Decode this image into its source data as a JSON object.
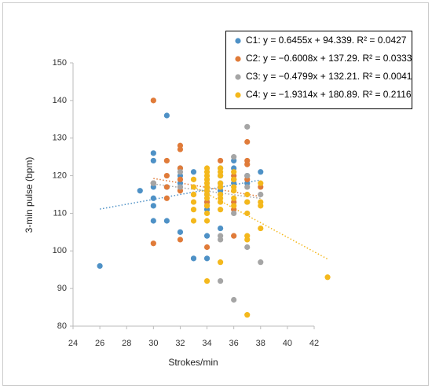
{
  "chart_data": {
    "type": "scatter",
    "x_label": "Strokes/min",
    "y_label": "3-min pulse (bpm)",
    "xlim": [
      24,
      42
    ],
    "xticks": [
      24,
      26,
      28,
      30,
      32,
      34,
      36,
      38,
      40,
      42
    ],
    "ylim": [
      80,
      150
    ],
    "yticks": [
      80,
      90,
      100,
      110,
      120,
      130,
      140,
      150
    ],
    "grid": false,
    "legend": "top-right",
    "series": [
      {
        "name": "C1: y = 0.6455x + 94.339. R² = 0.0427",
        "color": "#4e91c6",
        "x": [
          26,
          29,
          30,
          30,
          30,
          30,
          30,
          30,
          30,
          31,
          31,
          31,
          32,
          32,
          32,
          32,
          32,
          33,
          33,
          34,
          34,
          34,
          34,
          34,
          35,
          35,
          35,
          35,
          35,
          36,
          36,
          36,
          37,
          37,
          38
        ],
        "values": [
          96,
          116,
          126,
          124,
          118,
          117,
          114,
          112,
          108,
          136,
          108,
          117,
          122,
          120,
          118,
          117,
          105,
          121,
          98,
          115,
          113,
          111,
          104,
          98,
          122,
          120,
          118,
          116,
          106,
          124,
          122,
          118,
          120,
          118,
          121
        ],
        "trend": {
          "slope": 0.6455,
          "intercept": 94.339,
          "xrange": [
            26,
            38
          ]
        }
      },
      {
        "name": "C2: y = −0.6008x + 137.29. R² = 0.0333",
        "color": "#e07b39",
        "x": [
          30,
          30,
          30,
          31,
          31,
          31,
          31,
          32,
          32,
          32,
          32,
          32,
          32,
          33,
          34,
          34,
          34,
          35,
          35,
          36,
          36,
          36,
          36,
          36,
          37,
          37,
          37,
          37,
          38
        ],
        "values": [
          140,
          102,
          118,
          124,
          120,
          117,
          114,
          128,
          127,
          122,
          119,
          116,
          103,
          115,
          113,
          112,
          101,
          124,
          117,
          120,
          119,
          113,
          111,
          104,
          129,
          124,
          123,
          119,
          117
        ],
        "trend": {
          "slope": -0.6008,
          "intercept": 137.29,
          "xrange": [
            30,
            38
          ]
        }
      },
      {
        "name": "C3: y = −0.4799x + 132.21. R² = 0.0041",
        "color": "#a5a5a5",
        "x": [
          30,
          32,
          32,
          34,
          34,
          35,
          35,
          35,
          36,
          36,
          36,
          37,
          37,
          37,
          37,
          37,
          38,
          38
        ],
        "values": [
          118,
          121,
          117,
          117,
          116,
          104,
          103,
          92,
          125,
          110,
          87,
          133,
          120,
          117,
          113,
          101,
          115,
          97
        ],
        "trend": {
          "slope": -0.4799,
          "intercept": 132.21,
          "xrange": [
            30,
            38
          ]
        }
      },
      {
        "name": "C4: y = −1.9314x + 180.89. R² = 0.2116",
        "color": "#f4b81c",
        "x": [
          33,
          33,
          33,
          33,
          33,
          33,
          34,
          34,
          34,
          34,
          34,
          34,
          34,
          34,
          34,
          34,
          34,
          34,
          34,
          35,
          35,
          35,
          35,
          35,
          35,
          35,
          35,
          35,
          35,
          36,
          36,
          36,
          36,
          36,
          36,
          37,
          37,
          37,
          37,
          37,
          37,
          38,
          38,
          38,
          38,
          43
        ],
        "values": [
          119,
          117,
          115,
          113,
          111,
          108,
          122,
          121,
          120,
          119,
          118,
          117,
          116,
          115,
          114,
          112,
          110,
          108,
          92,
          122,
          121,
          120,
          118,
          117,
          115,
          114,
          113,
          111,
          97,
          121,
          119,
          117,
          116,
          114,
          112,
          115,
          113,
          110,
          104,
          103,
          83,
          118,
          113,
          112,
          106,
          93
        ],
        "trend": {
          "slope": -1.9314,
          "intercept": 180.89,
          "xrange": [
            33,
            43
          ]
        }
      }
    ]
  }
}
